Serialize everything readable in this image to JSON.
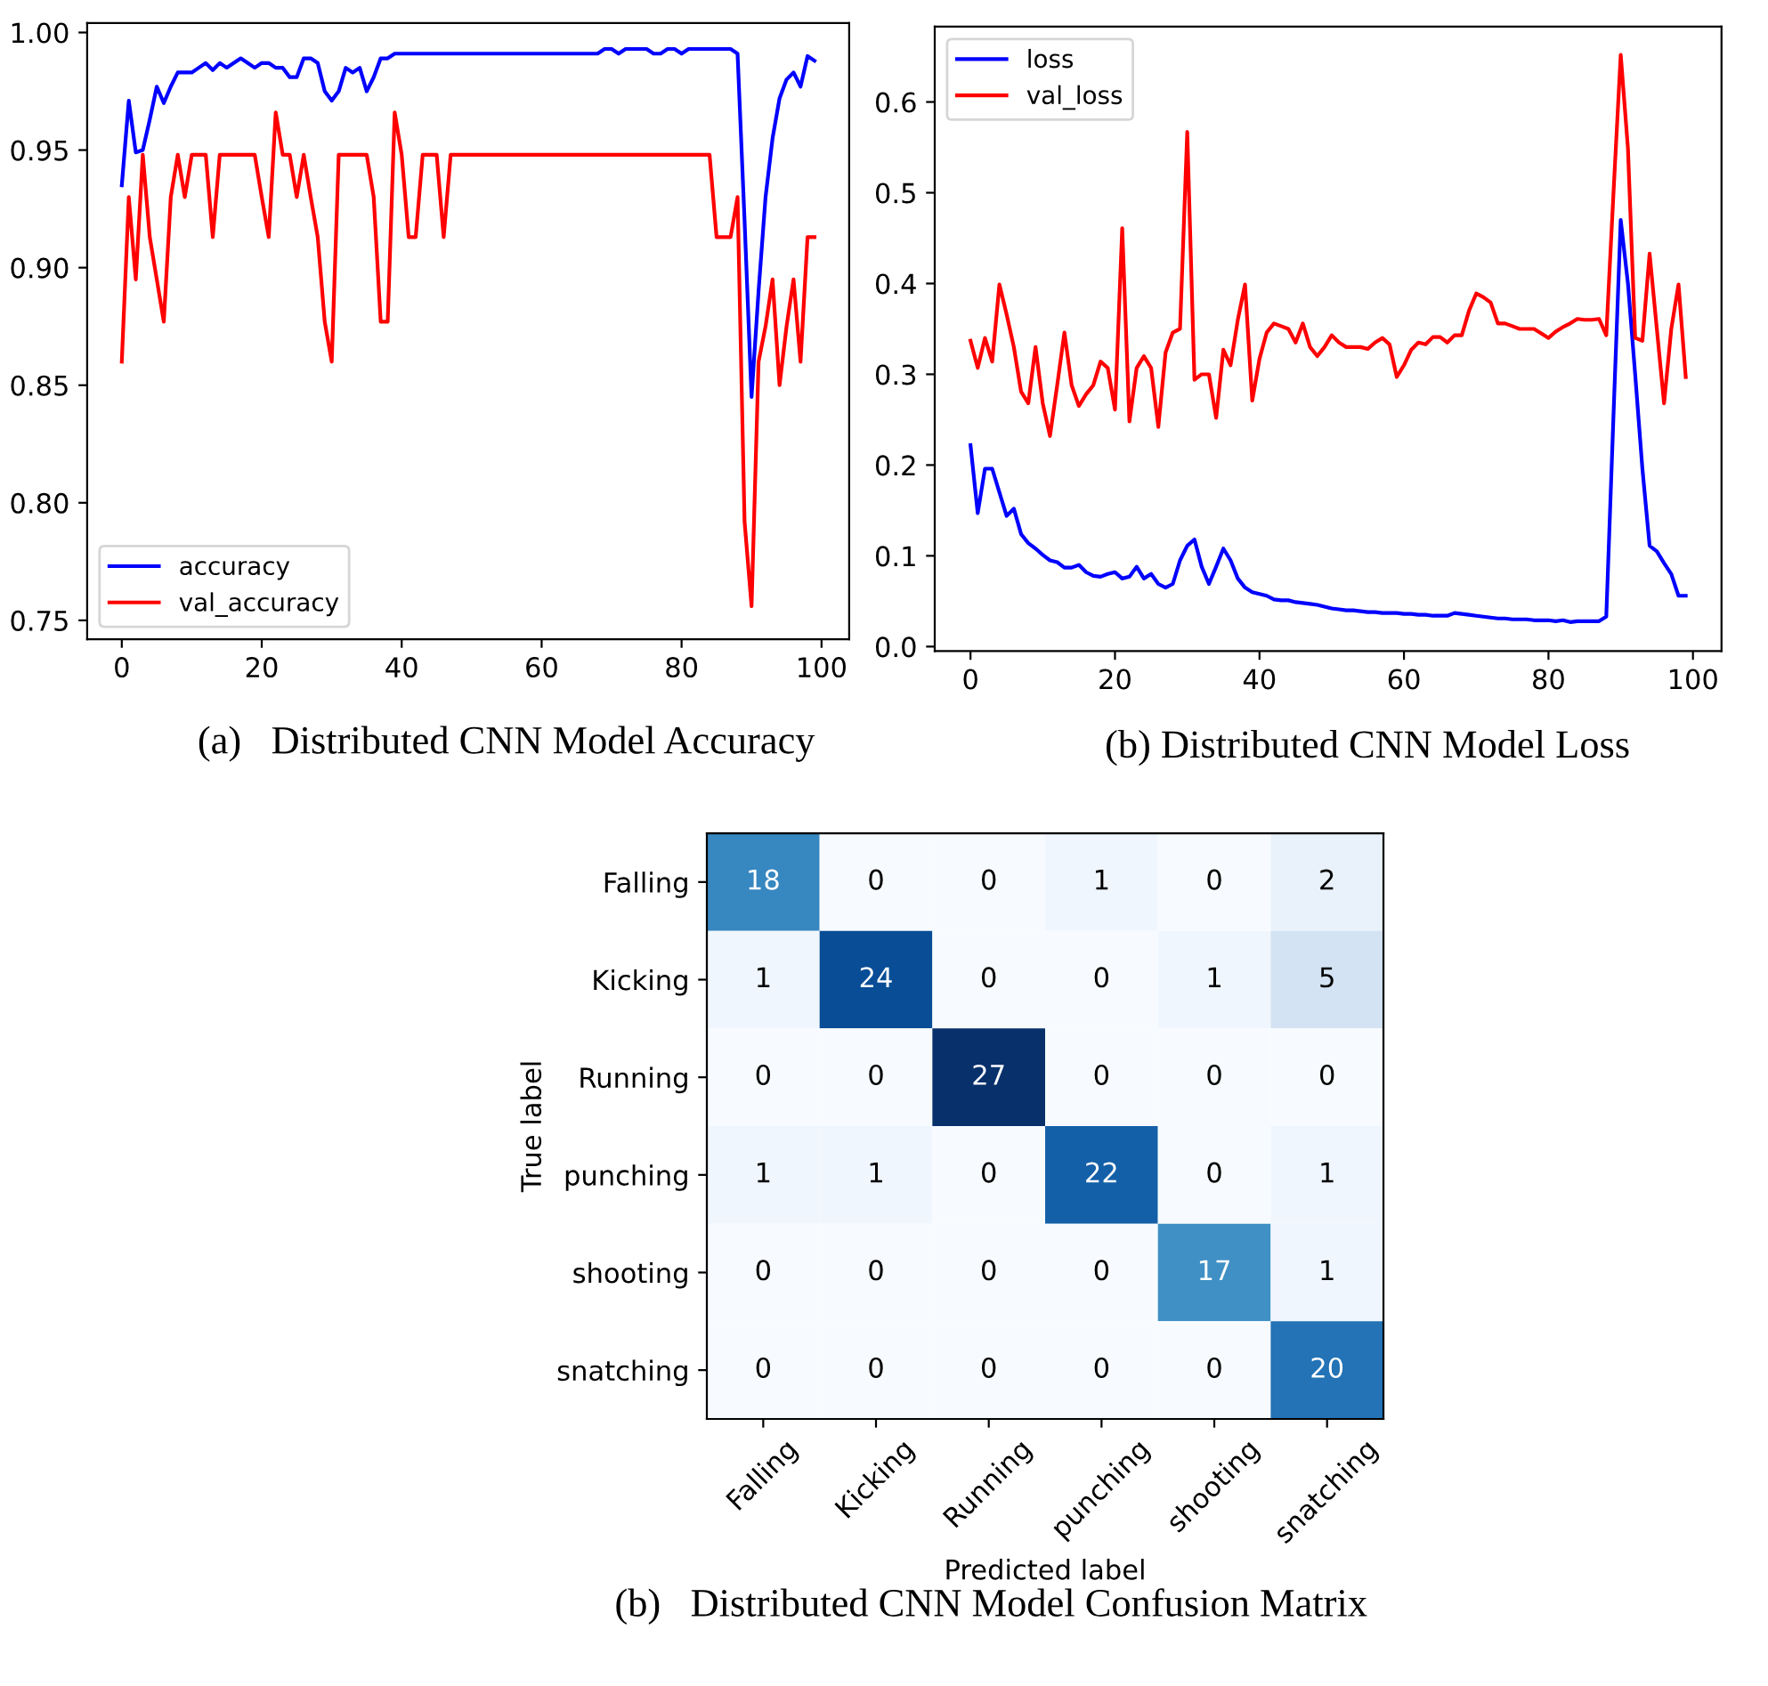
{
  "chart_data": [
    {
      "type": "line",
      "x": [
        0,
        1,
        2,
        3,
        4,
        5,
        6,
        7,
        8,
        9,
        10,
        11,
        12,
        13,
        14,
        15,
        16,
        17,
        18,
        19,
        20,
        21,
        22,
        23,
        24,
        25,
        26,
        27,
        28,
        29,
        30,
        31,
        32,
        33,
        34,
        35,
        36,
        37,
        38,
        39,
        40,
        41,
        42,
        43,
        44,
        45,
        46,
        47,
        48,
        49,
        50,
        51,
        52,
        53,
        54,
        55,
        56,
        57,
        58,
        59,
        60,
        61,
        62,
        63,
        64,
        65,
        66,
        67,
        68,
        69,
        70,
        71,
        72,
        73,
        74,
        75,
        76,
        77,
        78,
        79,
        80,
        81,
        82,
        83,
        84,
        85,
        86,
        87,
        88,
        89,
        90,
        91,
        92,
        93,
        94,
        95,
        96,
        97,
        98,
        99
      ],
      "series": [
        {
          "name": "accuracy",
          "color": "#0000ff",
          "values": [
            0.935,
            0.971,
            0.949,
            0.95,
            0.963,
            0.977,
            0.97,
            0.977,
            0.983,
            0.983,
            0.983,
            0.985,
            0.987,
            0.984,
            0.987,
            0.985,
            0.987,
            0.989,
            0.987,
            0.985,
            0.987,
            0.987,
            0.985,
            0.985,
            0.981,
            0.981,
            0.989,
            0.989,
            0.987,
            0.975,
            0.971,
            0.975,
            0.985,
            0.983,
            0.985,
            0.975,
            0.981,
            0.989,
            0.989,
            0.991,
            0.991,
            0.991,
            0.991,
            0.991,
            0.991,
            0.991,
            0.991,
            0.991,
            0.991,
            0.991,
            0.991,
            0.991,
            0.991,
            0.991,
            0.991,
            0.991,
            0.991,
            0.991,
            0.991,
            0.991,
            0.991,
            0.991,
            0.991,
            0.991,
            0.991,
            0.991,
            0.991,
            0.991,
            0.991,
            0.993,
            0.993,
            0.991,
            0.993,
            0.993,
            0.993,
            0.993,
            0.991,
            0.991,
            0.993,
            0.993,
            0.991,
            0.993,
            0.993,
            0.993,
            0.993,
            0.993,
            0.993,
            0.993,
            0.991,
            0.92,
            0.845,
            0.89,
            0.93,
            0.955,
            0.972,
            0.98,
            0.983,
            0.977,
            0.99,
            0.988
          ]
        },
        {
          "name": "val_accuracy",
          "color": "#ff0000",
          "values": [
            0.86,
            0.93,
            0.895,
            0.948,
            0.913,
            0.895,
            0.877,
            0.93,
            0.948,
            0.93,
            0.948,
            0.948,
            0.948,
            0.913,
            0.948,
            0.948,
            0.948,
            0.948,
            0.948,
            0.948,
            0.93,
            0.913,
            0.966,
            0.948,
            0.948,
            0.93,
            0.948,
            0.93,
            0.913,
            0.877,
            0.86,
            0.948,
            0.948,
            0.948,
            0.948,
            0.948,
            0.93,
            0.877,
            0.877,
            0.966,
            0.948,
            0.913,
            0.913,
            0.948,
            0.948,
            0.948,
            0.913,
            0.948,
            0.948,
            0.948,
            0.948,
            0.948,
            0.948,
            0.948,
            0.948,
            0.948,
            0.948,
            0.948,
            0.948,
            0.948,
            0.948,
            0.948,
            0.948,
            0.948,
            0.948,
            0.948,
            0.948,
            0.948,
            0.948,
            0.948,
            0.948,
            0.948,
            0.948,
            0.948,
            0.948,
            0.948,
            0.948,
            0.948,
            0.948,
            0.948,
            0.948,
            0.948,
            0.948,
            0.948,
            0.948,
            0.913,
            0.913,
            0.913,
            0.93,
            0.792,
            0.756,
            0.86,
            0.875,
            0.895,
            0.85,
            0.875,
            0.895,
            0.86,
            0.913,
            0.913
          ]
        }
      ],
      "xlim": [
        -4.95,
        103.95
      ],
      "ylim": [
        0.742,
        1.004
      ],
      "xticks": [
        0,
        20,
        40,
        60,
        80,
        100
      ],
      "yticks": [
        {
          "value": 0.75,
          "label": "0.75"
        },
        {
          "value": 0.8,
          "label": "0.80"
        },
        {
          "value": 0.85,
          "label": "0.85"
        },
        {
          "value": 0.9,
          "label": "0.90"
        },
        {
          "value": 0.95,
          "label": "0.95"
        },
        {
          "value": 1.0,
          "label": "1.00"
        }
      ],
      "legend": "bottom left",
      "grid": false,
      "annotations": [
        "(a)   Distributed CNN Model Accuracy"
      ]
    },
    {
      "type": "line",
      "x": [
        0,
        1,
        2,
        3,
        4,
        5,
        6,
        7,
        8,
        9,
        10,
        11,
        12,
        13,
        14,
        15,
        16,
        17,
        18,
        19,
        20,
        21,
        22,
        23,
        24,
        25,
        26,
        27,
        28,
        29,
        30,
        31,
        32,
        33,
        34,
        35,
        36,
        37,
        38,
        39,
        40,
        41,
        42,
        43,
        44,
        45,
        46,
        47,
        48,
        49,
        50,
        51,
        52,
        53,
        54,
        55,
        56,
        57,
        58,
        59,
        60,
        61,
        62,
        63,
        64,
        65,
        66,
        67,
        68,
        69,
        70,
        71,
        72,
        73,
        74,
        75,
        76,
        77,
        78,
        79,
        80,
        81,
        82,
        83,
        84,
        85,
        86,
        87,
        88,
        89,
        90,
        91,
        92,
        93,
        94,
        95,
        96,
        97,
        98,
        99
      ],
      "series": [
        {
          "name": "loss",
          "color": "#0000ff",
          "values": [
            0.222,
            0.147,
            0.196,
            0.196,
            0.17,
            0.144,
            0.152,
            0.124,
            0.114,
            0.108,
            0.101,
            0.095,
            0.093,
            0.087,
            0.087,
            0.09,
            0.082,
            0.078,
            0.077,
            0.08,
            0.082,
            0.075,
            0.077,
            0.088,
            0.075,
            0.08,
            0.069,
            0.065,
            0.069,
            0.095,
            0.111,
            0.118,
            0.088,
            0.069,
            0.088,
            0.108,
            0.095,
            0.075,
            0.065,
            0.06,
            0.058,
            0.056,
            0.052,
            0.051,
            0.051,
            0.049,
            0.048,
            0.047,
            0.046,
            0.044,
            0.042,
            0.041,
            0.04,
            0.04,
            0.039,
            0.038,
            0.038,
            0.037,
            0.037,
            0.037,
            0.036,
            0.036,
            0.035,
            0.035,
            0.034,
            0.034,
            0.034,
            0.037,
            0.036,
            0.035,
            0.034,
            0.033,
            0.032,
            0.031,
            0.031,
            0.03,
            0.03,
            0.03,
            0.029,
            0.029,
            0.029,
            0.028,
            0.029,
            0.027,
            0.028,
            0.028,
            0.028,
            0.028,
            0.033,
            0.255,
            0.47,
            0.4,
            0.3,
            0.196,
            0.111,
            0.105,
            0.092,
            0.08,
            0.056,
            0.056
          ]
        },
        {
          "name": "val_loss",
          "color": "#ff0000",
          "values": [
            0.337,
            0.307,
            0.34,
            0.314,
            0.399,
            0.366,
            0.33,
            0.281,
            0.268,
            0.33,
            0.268,
            0.232,
            0.288,
            0.346,
            0.288,
            0.265,
            0.278,
            0.288,
            0.314,
            0.307,
            0.261,
            0.461,
            0.248,
            0.307,
            0.32,
            0.307,
            0.242,
            0.324,
            0.346,
            0.35,
            0.567,
            0.294,
            0.3,
            0.3,
            0.252,
            0.327,
            0.31,
            0.36,
            0.399,
            0.271,
            0.317,
            0.346,
            0.356,
            0.353,
            0.35,
            0.335,
            0.356,
            0.33,
            0.32,
            0.33,
            0.343,
            0.335,
            0.33,
            0.33,
            0.33,
            0.328,
            0.335,
            0.34,
            0.333,
            0.297,
            0.31,
            0.327,
            0.335,
            0.333,
            0.341,
            0.341,
            0.335,
            0.343,
            0.343,
            0.37,
            0.389,
            0.385,
            0.379,
            0.356,
            0.356,
            0.353,
            0.35,
            0.35,
            0.35,
            0.345,
            0.34,
            0.347,
            0.352,
            0.356,
            0.361,
            0.36,
            0.36,
            0.361,
            0.343,
            0.5,
            0.652,
            0.549,
            0.34,
            0.337,
            0.433,
            0.35,
            0.268,
            0.35,
            0.399,
            0.297
          ]
        }
      ],
      "xlim": [
        -4.95,
        103.95
      ],
      "ylim": [
        -0.005,
        0.683
      ],
      "xticks": [
        0,
        20,
        40,
        60,
        80,
        100
      ],
      "yticks": [
        {
          "value": 0.0,
          "label": "0.0"
        },
        0.1,
        0.2,
        0.3,
        0.4,
        0.5,
        0.6
      ],
      "legend": "top left",
      "grid": false,
      "annotations": [
        "(b) Distributed CNN Model Loss"
      ]
    },
    {
      "type": "heatmap",
      "categories": [
        "Falling",
        "Kicking",
        "Running",
        "punching",
        "shooting",
        "snatching"
      ],
      "y_categories": [
        "Falling",
        "Kicking",
        "Running",
        "punching",
        "shooting",
        "snatching"
      ],
      "cells": [
        [
          18,
          0,
          0,
          1,
          0,
          2
        ],
        [
          1,
          24,
          0,
          0,
          1,
          5
        ],
        [
          0,
          0,
          27,
          0,
          0,
          0
        ],
        [
          1,
          1,
          0,
          22,
          0,
          1
        ],
        [
          0,
          0,
          0,
          0,
          17,
          1
        ],
        [
          0,
          0,
          0,
          0,
          0,
          20
        ]
      ],
      "data_labels": true,
      "xlabel": "Predicted label",
      "ylabel": "True label",
      "annotations": [
        "(b)   Distributed CNN Model Confusion Matrix"
      ]
    }
  ]
}
